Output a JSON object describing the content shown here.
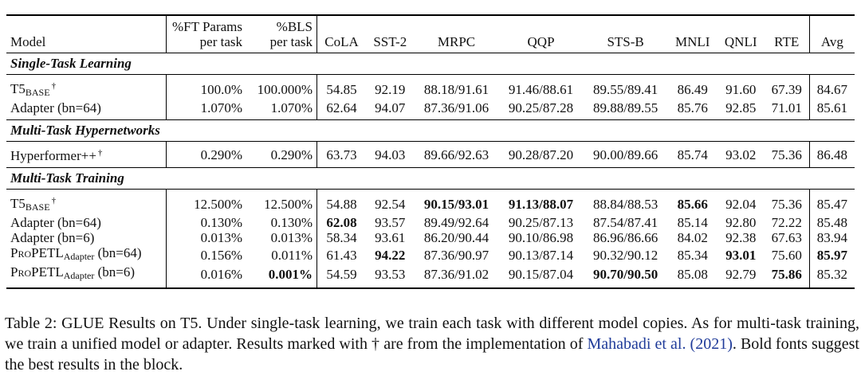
{
  "header": {
    "model": "Model",
    "ft_params_l1": "%FT Params",
    "ft_params_l2": "per task",
    "bls_l1": "%BLS",
    "bls_l2": "per task",
    "tasks": [
      "CoLA",
      "SST-2",
      "MRPC",
      "QQP",
      "STS-B",
      "MNLI",
      "QNLI",
      "RTE"
    ],
    "avg": "Avg"
  },
  "sections": [
    {
      "title": "Single-Task Learning",
      "rows": [
        {
          "model": "T5",
          "model_sub": "BASE",
          "model_mark": "†",
          "ft": "100.0%",
          "bls": "100.000%",
          "cells": [
            "54.85",
            "92.19",
            "88.18/91.61",
            "91.46/88.61",
            "89.55/89.41",
            "86.49",
            "91.60",
            "67.39"
          ],
          "avg": "84.67"
        },
        {
          "model": "Adapter (bn=64)",
          "ft": "1.070%",
          "bls": "1.070%",
          "cells": [
            "62.64",
            "94.07",
            "87.36/91.06",
            "90.25/87.28",
            "89.88/89.55",
            "85.76",
            "92.85",
            "71.01"
          ],
          "avg": "85.61"
        }
      ]
    },
    {
      "title": "Multi-Task Hypernetworks",
      "rows": [
        {
          "model": "Hyperformer++",
          "model_mark": "†",
          "ft": "0.290%",
          "bls": "0.290%",
          "cells": [
            "63.73",
            "94.03",
            "89.66/92.63",
            "90.28/87.20",
            "90.00/89.66",
            "85.74",
            "93.02",
            "75.36"
          ],
          "avg": "86.48"
        }
      ]
    },
    {
      "title": "Multi-Task Training",
      "rows": [
        {
          "model": "T5",
          "model_sub": "BASE",
          "model_mark": "†",
          "ft": "12.500%",
          "bls": "12.500%",
          "cells": [
            "54.88",
            "92.54",
            "90.15/93.01",
            "91.13/88.07",
            "88.84/88.53",
            "85.66",
            "92.04",
            "75.36"
          ],
          "avg": "85.47"
        },
        {
          "model": "Adapter (bn=64)",
          "ft": "0.130%",
          "bls": "0.130%",
          "cells": [
            "62.08",
            "93.57",
            "89.49/92.64",
            "90.25/87.13",
            "87.54/87.41",
            "85.14",
            "92.80",
            "72.22"
          ],
          "avg": "85.48"
        },
        {
          "model": "Adapter (bn=6)",
          "ft": "0.013%",
          "bls": "0.013%",
          "cells": [
            "58.34",
            "93.61",
            "86.20/90.44",
            "90.10/86.98",
            "86.96/86.66",
            "84.02",
            "92.38",
            "67.63"
          ],
          "avg": "83.94"
        },
        {
          "model": "ProPETL",
          "model_sub": "Adapter",
          "model_suffix": " (bn=64)",
          "ft": "0.156%",
          "bls": "0.011%",
          "cells": [
            "61.43",
            "94.22",
            "87.36/90.97",
            "90.13/87.14",
            "90.32/90.12",
            "85.34",
            "93.01",
            "75.60"
          ],
          "avg": "85.97"
        },
        {
          "model": "ProPETL",
          "model_sub": "Adapter",
          "model_suffix": " (bn=6)",
          "ft": "0.016%",
          "bls": "0.001%",
          "cells": [
            "54.59",
            "93.53",
            "87.36/91.02",
            "90.15/87.04",
            "90.70/90.50",
            "85.08",
            "92.79",
            "75.86"
          ],
          "avg": "85.32"
        }
      ]
    }
  ],
  "caption": {
    "text_1": "Table 2: GLUE Results on T5. Under single-task learning, we train each task with different model copies. As for multi-task training, we train a unified model or adapter. Results marked with † are from the implementation of ",
    "link": "Mahabadi et al. (2021)",
    "text_2": ". Bold fonts suggest the best results in the block."
  }
}
